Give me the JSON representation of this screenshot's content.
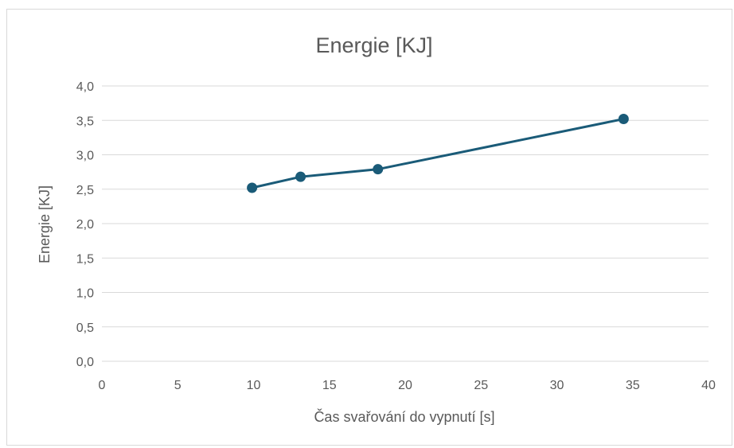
{
  "chart_data": {
    "type": "scatter",
    "title": "Energie [KJ]",
    "xlabel": "Čas svařování do vypnutí [s]",
    "ylabel": "Energie [KJ]",
    "xlim": [
      0,
      40
    ],
    "ylim": [
      0,
      4.0
    ],
    "xticks": [
      0,
      5,
      10,
      15,
      20,
      25,
      30,
      35,
      40
    ],
    "yticks": [
      "0,0",
      "0,5",
      "1,0",
      "1,5",
      "2,0",
      "2,5",
      "3,0",
      "3,5",
      "4,0"
    ],
    "grid": true,
    "markers": true,
    "lines": true,
    "series": [
      {
        "color": "#1a5b78",
        "x": [
          9.9,
          13.1,
          18.2,
          34.4
        ],
        "y": [
          2.52,
          2.68,
          2.79,
          3.52
        ]
      }
    ]
  }
}
